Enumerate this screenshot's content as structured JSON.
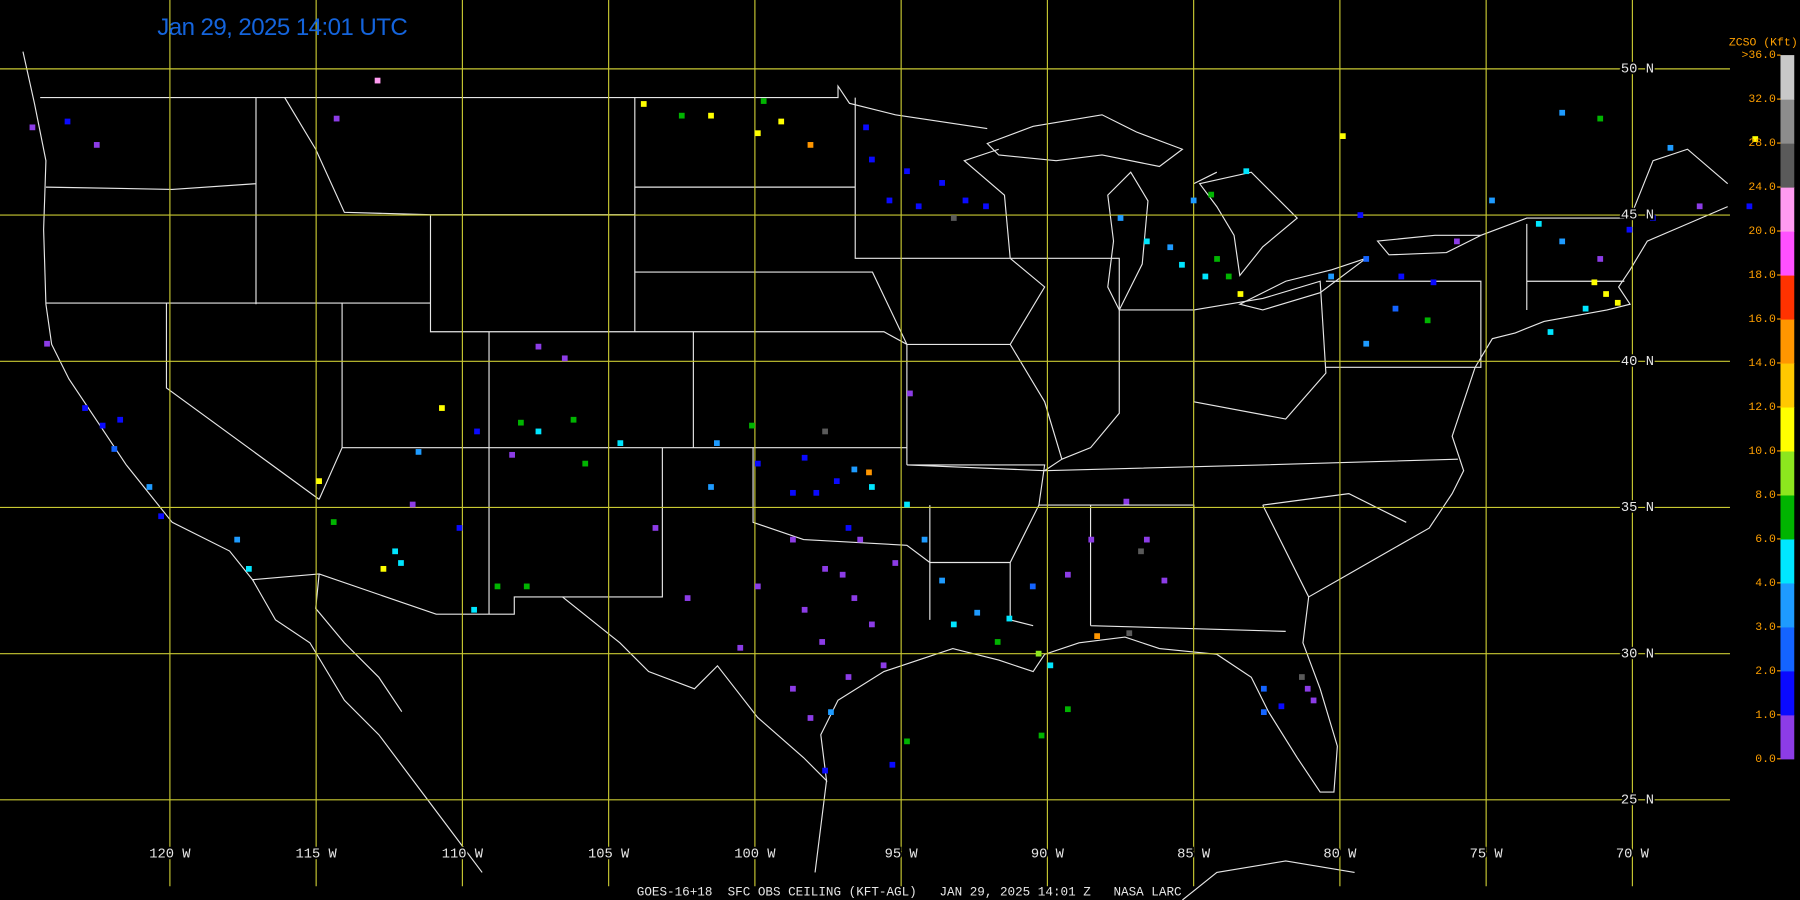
{
  "header": {
    "title": "Jan 29, 2025 14:01 UTC",
    "footer": "GOES-16+18  SFC OBS CEILING (KFT-AGL)   JAN 29, 2025 14:01 Z   NASA LARC"
  },
  "map": {
    "grid_color": "#c8c832",
    "lat_lines": [
      {
        "value": 50,
        "label": "50 N"
      },
      {
        "value": 45,
        "label": "45 N"
      },
      {
        "value": 40,
        "label": "40 N"
      },
      {
        "value": 35,
        "label": "35 N"
      },
      {
        "value": 30,
        "label": "30 N"
      },
      {
        "value": 25,
        "label": "25 N"
      }
    ],
    "lon_lines": [
      {
        "value": -120,
        "label": "120 W"
      },
      {
        "value": -115,
        "label": "115 W"
      },
      {
        "value": -110,
        "label": "110 W"
      },
      {
        "value": -105,
        "label": "105 W"
      },
      {
        "value": -100,
        "label": "100 W"
      },
      {
        "value": -95,
        "label": "95 W"
      },
      {
        "value": -90,
        "label": "90 W"
      },
      {
        "value": -85,
        "label": "85 W"
      },
      {
        "value": -80,
        "label": "80 W"
      },
      {
        "value": -75,
        "label": "75 W"
      },
      {
        "value": -70,
        "label": "70 W"
      }
    ]
  },
  "colorbar": {
    "title": "ZCSO (Kft)",
    "ticks": [
      {
        "value": 0,
        "label": "0.0"
      },
      {
        "value": 1,
        "label": "1.0"
      },
      {
        "value": 2,
        "label": "2.0"
      },
      {
        "value": 3,
        "label": "3.0"
      },
      {
        "value": 4,
        "label": "4.0"
      },
      {
        "value": 6,
        "label": "6.0"
      },
      {
        "value": 8,
        "label": "8.0"
      },
      {
        "value": 10,
        "label": "10.0"
      },
      {
        "value": 12,
        "label": "12.0"
      },
      {
        "value": 14,
        "label": "14.0"
      },
      {
        "value": 16,
        "label": "16.0"
      },
      {
        "value": 18,
        "label": "18.0"
      },
      {
        "value": 20,
        "label": "20.0"
      },
      {
        "value": 24,
        "label": "24.0"
      },
      {
        "value": 28,
        "label": "28.0"
      },
      {
        "value": 32,
        "label": "32.0"
      },
      {
        "value": 36,
        "label": ">36.0"
      }
    ],
    "colors": [
      "#8c3ce6",
      "#0a0aff",
      "#1464ff",
      "#1e9bff",
      "#00e6ff",
      "#00b400",
      "#8ce61e",
      "#ffff00",
      "#ffc800",
      "#ff9600",
      "#ff3200",
      "#ff50ff",
      "#ff9bf0",
      "#5a5a5a",
      "#8c8c8c",
      "#c8c8c8"
    ]
  },
  "stations": {
    "lon": [
      -97.6,
      -97.0,
      -96.6,
      -98.3,
      -97.7,
      -96.0,
      -95.6,
      -96.8,
      -98.7,
      -99.9,
      -102.3,
      -100.5,
      -98.1,
      -97.4,
      -97.6,
      -96.4,
      -95.2,
      -98.7,
      -96.8,
      -103.4,
      -98.7,
      -97.9,
      -97.2,
      -96.6,
      -96.0,
      -98.3,
      -99.9,
      -101.5,
      -96.1,
      -94.8,
      -93.2,
      -92.4,
      -91.7,
      -91.3,
      -90.3,
      -89.9,
      -89.3,
      -88.5,
      -90.5,
      -93.6,
      -94.2,
      -88.3,
      -87.2,
      -82.6,
      -82.0,
      -81.1,
      -80.9,
      -81.3,
      -82.6,
      -87.3,
      -86.6,
      -86.8,
      -86.0,
      -96.0,
      -94.8,
      -93.6,
      -92.8,
      -94.4,
      -92.1,
      -95.4,
      -93.2,
      -96.2,
      -85.4,
      -84.6,
      -84.2,
      -83.8,
      -85.8,
      -84.4,
      -83.2,
      -85.0,
      -86.6,
      -87.5,
      -83.4,
      -80.3,
      -79.1,
      -77.9,
      -76.8,
      -76.0,
      -79.1,
      -78.1,
      -77.0,
      -79.9,
      -73.2,
      -72.4,
      -71.3,
      -70.9,
      -70.5,
      -71.6,
      -72.8,
      -71.1,
      -70.1,
      -69.3,
      -67.7,
      -66.0,
      -65.8,
      -71.1,
      -72.4,
      -68.7,
      -79.3,
      -74.8,
      -112.9,
      -114.3,
      -103.8,
      -101.5,
      -99.7,
      -99.1,
      -98.1,
      -99.9,
      -102.5,
      -122.5,
      -123.5,
      -124.7,
      -124.2,
      -122.9,
      -122.3,
      -121.9,
      -121.7,
      -120.7,
      -120.3,
      -117.3,
      -117.7,
      -114.9,
      -114.4,
      -112.3,
      -112.1,
      -112.7,
      -111.7,
      -110.7,
      -108.0,
      -107.4,
      -106.2,
      -105.8,
      -108.3,
      -107.4,
      -106.5,
      -109.5,
      -111.5,
      -110.1,
      -109.6,
      -108.8,
      -107.8,
      -104.6,
      -101.3,
      -97.6,
      -100.1,
      -94.7,
      -95.3,
      -94.8,
      -90.2,
      -89.3
    ],
    "lat": [
      32.9,
      32.7,
      31.9,
      31.5,
      30.4,
      31.0,
      29.6,
      29.2,
      28.8,
      32.3,
      31.9,
      30.2,
      27.8,
      28.0,
      26.0,
      33.9,
      33.1,
      33.9,
      34.3,
      34.3,
      35.5,
      35.5,
      35.9,
      36.3,
      35.7,
      36.7,
      36.5,
      35.7,
      36.2,
      35.1,
      31.0,
      31.4,
      30.4,
      31.2,
      30.0,
      29.6,
      32.7,
      33.9,
      32.3,
      32.5,
      33.9,
      30.6,
      30.7,
      28.0,
      28.2,
      28.8,
      28.4,
      29.2,
      28.8,
      35.2,
      33.9,
      33.5,
      32.5,
      46.9,
      46.5,
      46.1,
      45.5,
      45.3,
      45.3,
      45.5,
      44.9,
      48.0,
      43.3,
      42.9,
      43.5,
      42.9,
      43.9,
      45.7,
      46.5,
      45.5,
      44.1,
      44.9,
      42.3,
      42.9,
      43.5,
      42.9,
      42.7,
      44.1,
      40.6,
      41.8,
      41.4,
      47.7,
      44.7,
      44.1,
      42.7,
      42.3,
      42.0,
      41.8,
      41.0,
      43.5,
      44.5,
      44.9,
      45.3,
      45.3,
      47.6,
      48.3,
      48.5,
      47.3,
      45.0,
      45.5,
      49.6,
      48.3,
      48.8,
      48.4,
      48.9,
      48.2,
      47.4,
      47.8,
      48.4,
      47.4,
      48.2,
      48.0,
      40.6,
      38.4,
      37.8,
      37.0,
      38.0,
      35.7,
      34.7,
      32.9,
      33.9,
      35.9,
      34.5,
      33.5,
      33.1,
      32.9,
      35.1,
      38.4,
      37.9,
      37.6,
      38.0,
      36.5,
      36.8,
      40.5,
      40.1,
      37.6,
      36.9,
      34.3,
      31.5,
      32.3,
      32.3,
      37.2,
      37.2,
      37.6,
      37.8,
      38.9,
      26.2,
      27.0,
      27.2,
      28.1
    ],
    "values": [
      0.5,
      0.5,
      0.5,
      0.5,
      0.5,
      0.5,
      0.5,
      0.5,
      0.5,
      0.5,
      0.5,
      0.5,
      0.5,
      3.5,
      1.5,
      0.5,
      0.5,
      0.5,
      1.5,
      0.5,
      1.5,
      1.5,
      1.5,
      3.5,
      5,
      1.5,
      1.5,
      3.5,
      15,
      5,
      5,
      3.5,
      7,
      5,
      9,
      5,
      0.5,
      0.5,
      2.5,
      3.5,
      3.5,
      15,
      26,
      2.5,
      1.5,
      0.5,
      0.5,
      26,
      2.5,
      0.5,
      0.5,
      26,
      0.5,
      1.5,
      1.5,
      1.5,
      1.5,
      1.5,
      1.5,
      1.5,
      26,
      1.5,
      5,
      5,
      7,
      7,
      3.5,
      7,
      5,
      3.5,
      5,
      3.5,
      11,
      3.5,
      2.5,
      1.5,
      1.5,
      0.5,
      3.5,
      2.5,
      7,
      11,
      5,
      3.5,
      11,
      11,
      11,
      5,
      5,
      0.5,
      1.5,
      1.5,
      0.5,
      1.5,
      11,
      7,
      3.5,
      3.5,
      1.5,
      3.5,
      22,
      0.5,
      11,
      11,
      7,
      11,
      15,
      11,
      7,
      0.5,
      1.5,
      0.5,
      0.5,
      1.5,
      1.5,
      2.5,
      1.5,
      3.5,
      1.5,
      5,
      3.5,
      11,
      7,
      5,
      5,
      11,
      0.5,
      11,
      7,
      5,
      7,
      7,
      0.5,
      0.5,
      0.5,
      1.5,
      3.5,
      1.5,
      5,
      7,
      7,
      5,
      3.5,
      26,
      7,
      0.5,
      1.5,
      7,
      7,
      7
    ]
  }
}
